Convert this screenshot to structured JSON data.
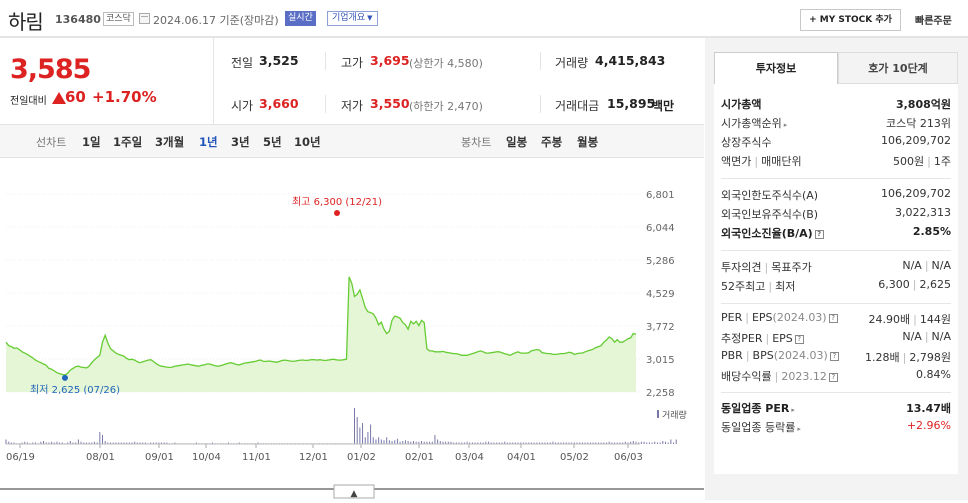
{
  "header": {
    "name": "하림",
    "code": "136480",
    "market": "코스닥",
    "date": "2024.06.17 기준(장마감)",
    "live": "실시간",
    "corp": "기업개요",
    "mystock": "+ MY STOCK 추가",
    "quick": "빠른주문"
  },
  "summary": {
    "price": "3,585",
    "change_label": "전일대비",
    "change": "60",
    "change_pct": "+1.70%",
    "prev_label": "전일",
    "prev": "3,525",
    "open_label": "시가",
    "open": "3,660",
    "high_label": "고가",
    "high": "3,695",
    "upper_limit": "(상한가 4,580)",
    "low_label": "저가",
    "low": "3,550",
    "lower_limit": "(하한가 2,470)",
    "vol_label": "거래량",
    "vol": "4,415,843",
    "amt_label": "거래대금",
    "amt": "15,895",
    "amt_unit": "백만"
  },
  "periods": {
    "line_label": "선차트",
    "line": [
      "1일",
      "1주일",
      "3개월",
      "1년",
      "3년",
      "5년",
      "10년"
    ],
    "active": "1년",
    "candle_label": "봉차트",
    "candle": [
      "일봉",
      "주봉",
      "월봉"
    ]
  },
  "chart_data": {
    "type": "area",
    "y_ticks": [
      "6,801",
      "6,044",
      "5,286",
      "4,529",
      "3,772",
      "3,015",
      "2,258"
    ],
    "ylim": [
      2258,
      6801
    ],
    "x_ticks": [
      "06/19",
      "08/01",
      "09/01",
      "10/04",
      "11/01",
      "12/01",
      "01/02",
      "02/01",
      "03/04",
      "04/01",
      "05/02",
      "06/03"
    ],
    "high_label": "최고 6,300 (12/21)",
    "low_label": "최저 2,625 (07/26)",
    "volume_label": "거래량",
    "colors": {
      "line": "#66cc33",
      "fill": "#e4f6d6",
      "high": "#dd2222",
      "low": "#2266bb",
      "volume": "#7777aa"
    },
    "series": [
      {
        "values": [
          3400,
          3320,
          3300,
          3260,
          3270,
          3230,
          3180,
          3150,
          3120,
          3080,
          3040,
          2990,
          2960,
          2930,
          2900,
          2870,
          2800,
          2780,
          2740,
          2700,
          2680,
          2660,
          2650,
          2690,
          2760,
          2800,
          2840,
          2850,
          2830,
          2820,
          2810,
          2850,
          2930,
          3000,
          3050,
          3100,
          3400,
          3560,
          3380,
          3250,
          3200,
          3150,
          3120,
          3100,
          3080,
          3030,
          3000,
          3010,
          2990,
          2950,
          2930,
          2950,
          2970,
          2990,
          3000,
          2960,
          2910,
          2870,
          2850,
          2840,
          2830,
          2820,
          2830,
          2850,
          2860,
          2870,
          2880,
          2890,
          2900,
          2880,
          2870,
          2860,
          2850,
          2870,
          2880,
          2900,
          2900,
          2880,
          2860,
          2850,
          2860,
          2880,
          2900,
          2920,
          2930,
          2910,
          2890,
          2880,
          2900,
          2920,
          2930,
          2940,
          2950,
          2960,
          2980,
          2990,
          2960,
          2960,
          2970,
          2960,
          2950,
          2940,
          2960,
          2980,
          2990,
          2980,
          2970,
          2960,
          2970,
          2980,
          2990,
          2990,
          2980,
          2990,
          3000,
          3000,
          2990,
          3000,
          2990,
          2980,
          2990,
          3000,
          3010,
          3000,
          2990,
          2990,
          3000,
          3010,
          4900,
          4750,
          4450,
          4500,
          4600,
          4400,
          4200,
          4100,
          4080,
          4050,
          3950,
          3800,
          3860,
          3700,
          3600,
          3650,
          3900,
          4000,
          3980,
          3950,
          3850,
          3800,
          3700,
          3880,
          3820,
          3880,
          3780,
          3900,
          3850,
          3250,
          3200,
          3200,
          3180,
          3180,
          3180,
          3190,
          3170,
          3160,
          3150,
          3140,
          3140,
          3120,
          3100,
          3100,
          3100,
          3120,
          3140,
          3160,
          3180,
          3200,
          3180,
          3150,
          3150,
          3160,
          3170,
          3180,
          3180,
          3160,
          3140,
          3120,
          3100,
          3130,
          3160,
          3180,
          3150,
          3150,
          3150,
          3160,
          3200,
          3220,
          3230,
          3220,
          3160,
          3150,
          3140,
          3140,
          3120,
          3120,
          3130,
          3140,
          3140,
          3150,
          3170,
          3160,
          3120,
          3140,
          3150,
          3150,
          3180,
          3200,
          3220,
          3240,
          3280,
          3300,
          3320,
          3400,
          3450,
          3520,
          3480,
          3400,
          3460,
          3400,
          3400,
          3440,
          3480,
          3500,
          3600,
          3585
        ]
      },
      {
        "name": "거래량",
        "values": [
          6,
          3,
          2,
          2,
          1,
          1,
          2,
          3,
          2,
          1,
          2,
          2,
          1,
          3,
          4,
          2,
          2,
          3,
          2,
          3,
          2,
          2,
          1,
          2,
          4,
          2,
          2,
          6,
          3,
          2,
          2,
          2,
          2,
          3,
          2,
          16,
          12,
          4,
          2,
          2,
          2,
          2,
          2,
          2,
          2,
          2,
          2,
          2,
          3,
          2,
          2,
          2,
          2,
          1,
          2,
          2,
          2,
          2,
          2,
          2,
          2,
          1,
          1,
          2,
          1,
          1,
          1,
          1,
          1,
          1,
          1,
          2,
          1,
          1,
          1,
          1,
          1,
          2,
          1,
          1,
          1,
          1,
          1,
          2,
          1,
          1,
          1,
          2,
          1,
          1,
          1,
          1,
          1,
          1,
          2,
          1,
          1,
          1,
          1,
          1,
          1,
          1,
          1,
          1,
          1,
          1,
          1,
          1,
          1,
          1,
          1,
          1,
          1,
          1,
          1,
          1,
          1,
          1,
          1,
          1,
          1,
          1,
          1,
          1,
          1,
          1,
          1,
          1,
          1,
          1,
          48,
          36,
          22,
          28,
          9,
          16,
          26,
          9,
          6,
          9,
          6,
          5,
          9,
          5,
          4,
          5,
          7,
          3,
          4,
          5,
          4,
          3,
          4,
          3,
          3,
          4,
          3,
          3,
          3,
          3,
          12,
          6,
          4,
          3,
          3,
          3,
          3,
          2,
          2,
          2,
          2,
          2,
          3,
          2,
          2,
          2,
          2,
          2,
          2,
          3,
          3,
          2,
          2,
          2,
          2,
          2,
          3,
          2,
          2,
          2,
          2,
          2,
          2,
          2,
          2,
          2,
          2,
          2,
          2,
          2,
          2,
          2,
          2,
          2,
          3,
          2,
          2,
          2,
          2,
          2,
          2,
          2,
          2,
          2,
          2,
          2,
          2,
          2,
          2,
          2,
          2,
          2,
          2,
          2,
          2,
          3,
          2,
          2,
          2,
          2,
          2,
          3,
          2,
          3,
          4,
          3,
          2,
          3,
          3,
          2,
          2,
          2,
          3,
          2,
          2,
          4,
          3,
          2,
          6,
          2,
          6
        ]
      }
    ]
  },
  "info": {
    "tab_active": "투자정보",
    "tab_other": "호가 10단계",
    "s1": [
      {
        "l": "시가총액",
        "v": "3,808억원"
      },
      {
        "l": "시가총액순위",
        "v": "코스닥 213위"
      },
      {
        "l": "상장주식수",
        "v": "106,209,702"
      },
      {
        "l": "액면가",
        "l2": "매매단위",
        "v": "500원",
        "v2": "1주"
      }
    ],
    "s2": [
      {
        "l": "외국인한도주식수(A)",
        "v": "106,209,702"
      },
      {
        "l": "외국인보유주식수(B)",
        "v": "3,022,313"
      },
      {
        "l": "외국인소진율(B/A)",
        "v": "2.85%"
      }
    ],
    "s3": [
      {
        "l": "투자의견",
        "l2": "목표주가",
        "v": "N/A",
        "v2": "N/A"
      },
      {
        "l": "52주최고",
        "l2": "최저",
        "v": "6,300",
        "v2": "2,625"
      }
    ],
    "s4": [
      {
        "l": "PER",
        "l2": "EPS",
        "ld": "(2024.03)",
        "v": "24.90배",
        "v2": "144원"
      },
      {
        "l": "추정PER",
        "l2": "EPS",
        "v": "N/A",
        "v2": "N/A"
      },
      {
        "l": "PBR",
        "l2": "BPS",
        "ld": "(2024.03)",
        "v": "1.28배",
        "v2": "2,798원"
      },
      {
        "l": "배당수익률",
        "ld": "2023.12",
        "v": "0.84%"
      }
    ],
    "s5": [
      {
        "l": "동일업종 PER",
        "v": "13.47배"
      },
      {
        "l": "동일업종 등락률",
        "v": "+2.96%"
      }
    ]
  }
}
